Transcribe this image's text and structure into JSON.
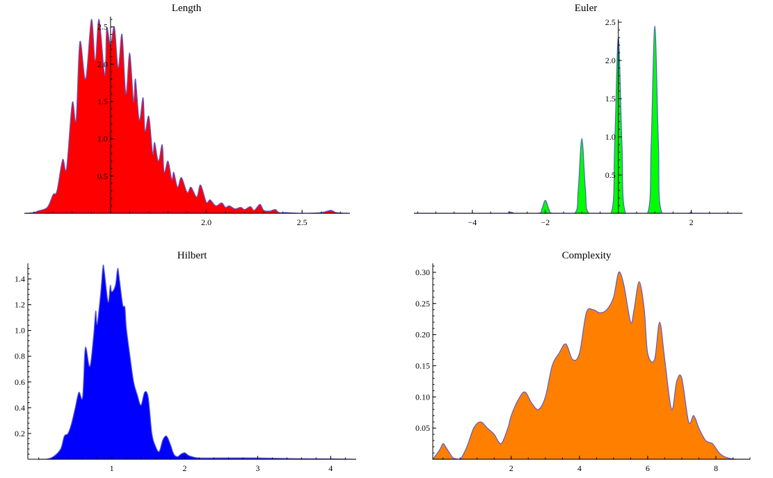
{
  "chart_data": [
    {
      "id": "length",
      "type": "area",
      "title": "Length",
      "xlabel": "",
      "ylabel": "",
      "xlim": [
        1.05,
        2.75
      ],
      "ylim": [
        0,
        2.6
      ],
      "origin_x": 1.5,
      "x_ticks": [
        2.0,
        2.5
      ],
      "x_tick_labels": [
        "2.0",
        "2.5"
      ],
      "y_ticks": [
        0.5,
        1.0,
        1.5,
        2.0,
        2.5
      ],
      "y_tick_labels": [
        "0.5",
        "1.0",
        "1.5",
        "2.0",
        "2.5"
      ],
      "fill": "#ff0000",
      "stroke": "#5a5ad0",
      "x": [
        1.05,
        1.1,
        1.12,
        1.17,
        1.2,
        1.22,
        1.25,
        1.27,
        1.3,
        1.32,
        1.34,
        1.37,
        1.4,
        1.42,
        1.44,
        1.47,
        1.48,
        1.5,
        1.52,
        1.54,
        1.56,
        1.58,
        1.6,
        1.62,
        1.63,
        1.65,
        1.67,
        1.68,
        1.7,
        1.72,
        1.73,
        1.75,
        1.77,
        1.78,
        1.8,
        1.82,
        1.83,
        1.85,
        1.87,
        1.9,
        1.92,
        1.95,
        1.97,
        2.0,
        2.02,
        2.05,
        2.08,
        2.1,
        2.12,
        2.15,
        2.18,
        2.2,
        2.23,
        2.25,
        2.28,
        2.3,
        2.33,
        2.36,
        2.38,
        2.42,
        2.5,
        2.6,
        2.65,
        2.68,
        2.75
      ],
      "y": [
        0,
        0.01,
        0.03,
        0.08,
        0.25,
        0.3,
        0.72,
        0.6,
        1.48,
        1.25,
        2.3,
        1.8,
        2.6,
        2.05,
        2.6,
        1.85,
        2.48,
        2.25,
        2.5,
        1.95,
        2.4,
        1.6,
        2.15,
        1.5,
        1.8,
        1.25,
        1.55,
        1.1,
        1.3,
        0.8,
        0.95,
        0.7,
        0.92,
        0.55,
        0.7,
        0.45,
        0.55,
        0.35,
        0.48,
        0.28,
        0.35,
        0.22,
        0.38,
        0.15,
        0.18,
        0.1,
        0.14,
        0.08,
        0.1,
        0.06,
        0.08,
        0.05,
        0.09,
        0.04,
        0.12,
        0.04,
        0.03,
        0.05,
        0.01,
        0.01,
        0.0,
        0.01,
        0.04,
        0.01,
        0
      ]
    },
    {
      "id": "euler",
      "type": "area",
      "title": "Euler",
      "xlabel": "",
      "ylabel": "",
      "xlim": [
        -5.6,
        3.4
      ],
      "ylim": [
        0,
        2.5
      ],
      "origin_x": 0,
      "x_ticks": [
        -4,
        -2,
        2
      ],
      "x_tick_labels": [
        "−4",
        "−2",
        "2"
      ],
      "y_ticks": [
        0.5,
        1.0,
        1.5,
        2.0,
        2.5
      ],
      "y_tick_labels": [
        "0.5",
        "1.0",
        "1.5",
        "2.0",
        "2.5"
      ],
      "fill": "#00ff00",
      "stroke": "#5a5ad0",
      "x": [
        -5.6,
        -3.1,
        -3.0,
        -2.9,
        -2.2,
        -2.1,
        -2.0,
        -1.9,
        -1.8,
        -1.2,
        -1.1,
        -1.0,
        -0.9,
        -0.8,
        -0.2,
        -0.1,
        0.0,
        0.1,
        0.2,
        0.8,
        0.9,
        1.0,
        1.1,
        1.2,
        1.9,
        2.0,
        2.1,
        3.4
      ],
      "y": [
        0,
        0,
        0.02,
        0,
        0,
        0.05,
        0.17,
        0.05,
        0,
        0,
        0.3,
        0.98,
        0.3,
        0,
        0,
        0.9,
        2.3,
        0.9,
        0,
        0,
        0.9,
        2.45,
        0.9,
        0,
        0,
        0.02,
        0,
        0
      ]
    },
    {
      "id": "hilbert",
      "type": "area",
      "title": "Hilbert",
      "xlabel": "",
      "ylabel": "",
      "xlim": [
        -0.15,
        4.35
      ],
      "ylim": [
        0,
        1.5
      ],
      "origin_x": -0.15,
      "x_ticks": [
        1,
        2,
        3,
        4
      ],
      "x_tick_labels": [
        "1",
        "2",
        "3",
        "4"
      ],
      "y_ticks": [
        0.2,
        0.4,
        0.6,
        0.8,
        1.0,
        1.2,
        1.4
      ],
      "y_tick_labels": [
        "0.2",
        "0.4",
        "0.6",
        "0.8",
        "1.0",
        "1.2",
        "1.4"
      ],
      "fill": "#0000ff",
      "stroke": "#5a5ad0",
      "x": [
        0.0,
        0.1,
        0.2,
        0.3,
        0.35,
        0.4,
        0.45,
        0.5,
        0.55,
        0.6,
        0.63,
        0.65,
        0.7,
        0.75,
        0.78,
        0.8,
        0.85,
        0.88,
        0.9,
        0.95,
        0.98,
        1.0,
        1.05,
        1.08,
        1.1,
        1.15,
        1.18,
        1.2,
        1.25,
        1.3,
        1.35,
        1.4,
        1.45,
        1.5,
        1.55,
        1.6,
        1.65,
        1.7,
        1.75,
        1.8,
        1.85,
        1.9,
        1.95,
        2.0,
        2.05,
        2.1,
        2.2,
        2.5,
        3.0,
        3.5,
        4.0,
        4.35
      ],
      "y": [
        0,
        0,
        0.02,
        0.08,
        0.18,
        0.2,
        0.28,
        0.4,
        0.52,
        0.48,
        0.82,
        0.86,
        0.72,
        0.95,
        1.15,
        1.05,
        1.3,
        1.5,
        1.45,
        1.22,
        1.35,
        1.3,
        1.35,
        1.48,
        1.42,
        1.2,
        1.18,
        1.02,
        0.8,
        0.6,
        0.5,
        0.42,
        0.52,
        0.48,
        0.2,
        0.1,
        0.06,
        0.15,
        0.18,
        0.12,
        0.04,
        0.02,
        0.04,
        0.05,
        0.03,
        0.02,
        0.01,
        0.01,
        0.01,
        0.005,
        0.003,
        0
      ]
    },
    {
      "id": "complexity",
      "type": "area",
      "title": "Complexity",
      "xlabel": "",
      "ylabel": "",
      "xlim": [
        -0.3,
        9.0
      ],
      "ylim": [
        0,
        0.31
      ],
      "origin_x": -0.3,
      "x_ticks": [
        2,
        4,
        6,
        8
      ],
      "x_tick_labels": [
        "2",
        "4",
        "6",
        "8"
      ],
      "y_ticks": [
        0.05,
        0.1,
        0.15,
        0.2,
        0.25,
        0.3
      ],
      "y_tick_labels": [
        "0.05",
        "0.10",
        "0.15",
        "0.20",
        "0.25",
        "0.30"
      ],
      "fill": "#ff8000",
      "stroke": "#5a5ad0",
      "x": [
        -0.3,
        -0.1,
        0.0,
        0.1,
        0.3,
        0.5,
        0.7,
        0.9,
        1.1,
        1.3,
        1.5,
        1.7,
        1.9,
        2.0,
        2.2,
        2.4,
        2.6,
        2.8,
        3.0,
        3.2,
        3.4,
        3.6,
        3.8,
        4.0,
        4.2,
        4.4,
        4.6,
        4.8,
        5.0,
        5.15,
        5.3,
        5.5,
        5.6,
        5.75,
        5.9,
        6.0,
        6.2,
        6.35,
        6.5,
        6.7,
        6.85,
        7.0,
        7.2,
        7.35,
        7.5,
        7.7,
        7.9,
        8.1,
        8.3,
        8.6,
        9.0
      ],
      "y": [
        0,
        0.015,
        0.025,
        0.018,
        0.002,
        0.0,
        0.02,
        0.05,
        0.06,
        0.05,
        0.04,
        0.025,
        0.05,
        0.07,
        0.095,
        0.108,
        0.09,
        0.08,
        0.1,
        0.15,
        0.17,
        0.185,
        0.16,
        0.17,
        0.235,
        0.24,
        0.235,
        0.24,
        0.26,
        0.3,
        0.28,
        0.22,
        0.24,
        0.285,
        0.24,
        0.17,
        0.16,
        0.22,
        0.16,
        0.08,
        0.125,
        0.13,
        0.06,
        0.07,
        0.05,
        0.03,
        0.025,
        0.01,
        0.003,
        0.0,
        0
      ]
    }
  ]
}
